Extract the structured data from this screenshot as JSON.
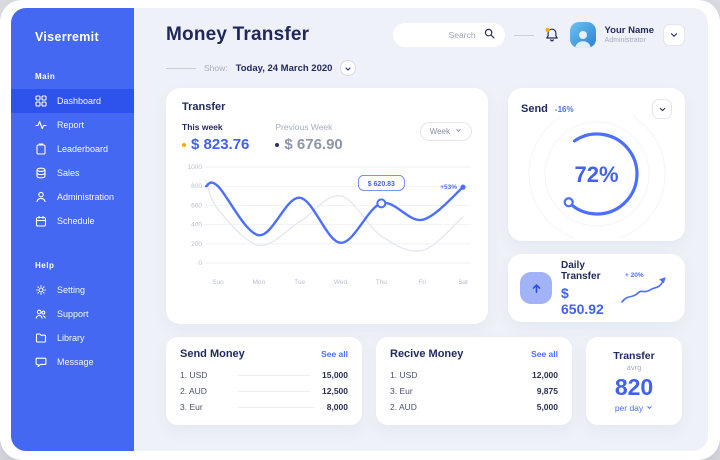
{
  "app": {
    "logo": "Viserremit"
  },
  "sidebar": {
    "sections": [
      {
        "label": "Main",
        "items": [
          {
            "icon": "dashboard",
            "label": "Dashboard",
            "active": true
          },
          {
            "icon": "report",
            "label": "Report",
            "active": false
          },
          {
            "icon": "leaderboard",
            "label": "Leaderboard",
            "active": false
          },
          {
            "icon": "sales",
            "label": "Sales",
            "active": false
          },
          {
            "icon": "administration",
            "label": "Administration",
            "active": false
          },
          {
            "icon": "schedule",
            "label": "Schedule",
            "active": false
          }
        ]
      },
      {
        "label": "Help",
        "items": [
          {
            "icon": "setting",
            "label": "Setting",
            "active": false
          },
          {
            "icon": "support",
            "label": "Support",
            "active": false
          },
          {
            "icon": "library",
            "label": "Library",
            "active": false
          },
          {
            "icon": "message",
            "label": "Message",
            "active": false
          }
        ]
      }
    ]
  },
  "header": {
    "title": "Money Transfer",
    "search_placeholder": "Search",
    "user_name": "Your Name",
    "user_role": "Administrator"
  },
  "show_bar": {
    "label": "Show:",
    "value": "Today, 24 March 2020"
  },
  "transfer_card": {
    "title": "Transfer",
    "this_week": {
      "label": "This week",
      "value": "$ 823.76"
    },
    "previous_week": {
      "label": "Previous Week",
      "value": "$ 676.90"
    },
    "range": "Week"
  },
  "chart_data": {
    "type": "line",
    "x": [
      "Sun",
      "Mon",
      "Tue",
      "Wed",
      "Thu",
      "Fri",
      "Sat"
    ],
    "ylim": [
      0,
      1000
    ],
    "yticks": [
      0,
      200,
      400,
      600,
      800,
      1000
    ],
    "grid": true,
    "legend_position": "none",
    "series": [
      {
        "name": "This week",
        "color": "#4C6FFF",
        "lead": 800,
        "values": [
          800,
          290,
          680,
          210,
          620.83,
          450,
          790
        ]
      },
      {
        "name": "Previous week",
        "color": "#E4E7EF",
        "lead": 860,
        "values": [
          560,
          185,
          430,
          700,
          280,
          130,
          480
        ]
      }
    ],
    "tooltip": {
      "x": "Thu",
      "label": "$ 620.83"
    },
    "end_label": "+53%"
  },
  "send_card": {
    "title": "Send",
    "change": "-16%",
    "progress_value": 72,
    "progress_label": "72%"
  },
  "daily_transfer": {
    "title": "Daily Transfer",
    "value": "$ 650.92",
    "change": "+ 20%"
  },
  "tables": {
    "send_money": {
      "title": "Send Money",
      "see_all": "See all",
      "rows": [
        {
          "label": "1. USD",
          "value": "15,000"
        },
        {
          "label": "2. AUD",
          "value": "12,500"
        },
        {
          "label": "3. Eur",
          "value": "8,000"
        }
      ]
    },
    "receive_money": {
      "title": "Recive Money",
      "see_all": "See all",
      "rows": [
        {
          "label": "1. USD",
          "value": "12,000"
        },
        {
          "label": "3. Eur",
          "value": "9,875"
        },
        {
          "label": "2. AUD",
          "value": "5,000"
        }
      ]
    }
  },
  "transfer_avg": {
    "title": "Transfer",
    "subtitle": "avrg",
    "value": "820",
    "unit": "per day"
  },
  "colors": {
    "accent": "#4C6FFF",
    "sidebar": "#4468F2",
    "sidebar_active": "#2E53EC",
    "navy": "#20275C",
    "orange": "#FFAA05",
    "muted": "#A7ADC2"
  }
}
